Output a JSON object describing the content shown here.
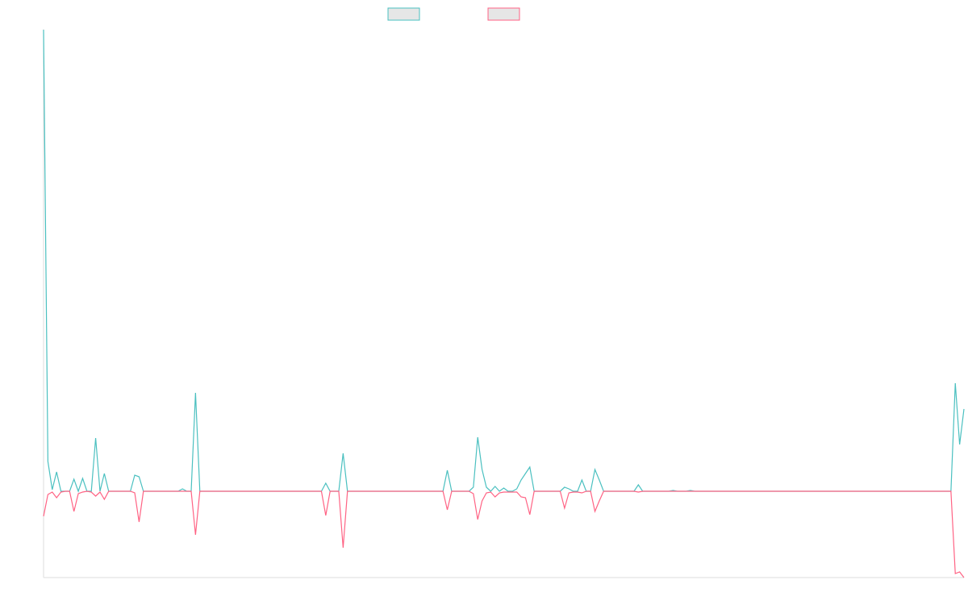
{
  "chart_data": {
    "type": "line",
    "categories": [
      null,
      null,
      null,
      null,
      null,
      null,
      null,
      null,
      null,
      null,
      null,
      null,
      null,
      null,
      null,
      null,
      null,
      null,
      null,
      null,
      null,
      null,
      null,
      null,
      null,
      null,
      null,
      null,
      null,
      null,
      null,
      null,
      null,
      null,
      null,
      null,
      null,
      null,
      null,
      null,
      null,
      null,
      null,
      null,
      null,
      null,
      null,
      null,
      null,
      null,
      null,
      null,
      null,
      null,
      null,
      null,
      null,
      null,
      null,
      null,
      null,
      null,
      null,
      null,
      null,
      null,
      null,
      null,
      null,
      null,
      null,
      null,
      null,
      null,
      null,
      null,
      null,
      null,
      null,
      null,
      null,
      null,
      null,
      null,
      null,
      null,
      null,
      null,
      null,
      null,
      null,
      null,
      null,
      null,
      null,
      null,
      null,
      null,
      null,
      null,
      null,
      null,
      null,
      null,
      null,
      null,
      null,
      null,
      null,
      null,
      null,
      null,
      null,
      null,
      null,
      null,
      null,
      null,
      null,
      null,
      null,
      null,
      null,
      null,
      null,
      null,
      null,
      null,
      null,
      null,
      null,
      null,
      null,
      null,
      null,
      null,
      null,
      null,
      null,
      null,
      null,
      null,
      null,
      null,
      null,
      null,
      null,
      null,
      null,
      null,
      null,
      null,
      null,
      null,
      null,
      null,
      null,
      null,
      null,
      null,
      null,
      null,
      null,
      null,
      null,
      null,
      null,
      null,
      null,
      null,
      null,
      null,
      null,
      null,
      null,
      null,
      null,
      null,
      null,
      null,
      null,
      null,
      null,
      null,
      null,
      null,
      null,
      null,
      null,
      null,
      null,
      null,
      null,
      null,
      null,
      null,
      null,
      null,
      null,
      null,
      null,
      null,
      null,
      null,
      null,
      null,
      null,
      null,
      null,
      null,
      null,
      null,
      null
    ],
    "series": [
      {
        "color": "#4bc0c0",
        "values": [
          572,
          37,
          2,
          24,
          0,
          0,
          0,
          15,
          0,
          16,
          0,
          0,
          66,
          0,
          22,
          0,
          0,
          0,
          0,
          0,
          0,
          20,
          18,
          0,
          0,
          0,
          0,
          0,
          0,
          0,
          0,
          0,
          3,
          0,
          0,
          122,
          0,
          0,
          0,
          0,
          0,
          0,
          0,
          0,
          0,
          0,
          0,
          0,
          0,
          0,
          0,
          0,
          0,
          0,
          0,
          0,
          0,
          0,
          0,
          0,
          0,
          0,
          0,
          0,
          0,
          10,
          0,
          0,
          0,
          47,
          0,
          0,
          0,
          0,
          0,
          0,
          0,
          0,
          0,
          0,
          0,
          0,
          0,
          0,
          0,
          0,
          0,
          0,
          0,
          0,
          0,
          0,
          0,
          26,
          0,
          0,
          0,
          0,
          0,
          5,
          67,
          27,
          5,
          0,
          6,
          0,
          4,
          0,
          0,
          3,
          14,
          22,
          30,
          0,
          0,
          0,
          0,
          0,
          0,
          0,
          5,
          3,
          0,
          0,
          14,
          0,
          0,
          27,
          14,
          0,
          0,
          0,
          0,
          0,
          0,
          0,
          0,
          8,
          0,
          0,
          0,
          0,
          0,
          0,
          0,
          1,
          0,
          0,
          0,
          1,
          0,
          0,
          0,
          0,
          0,
          0,
          0,
          0,
          0,
          0,
          0,
          0,
          0,
          0,
          0,
          0,
          0,
          0,
          0,
          0,
          0,
          0,
          0,
          0,
          0,
          0,
          0,
          0,
          0,
          0,
          0,
          0,
          0,
          0,
          0,
          0,
          0,
          0,
          0,
          0,
          0,
          0,
          0,
          0,
          0,
          0,
          0,
          0,
          0,
          0,
          0,
          0,
          0,
          0,
          0,
          0,
          0,
          0,
          0,
          0,
          134,
          58,
          102
        ]
      },
      {
        "color": "#ff6384",
        "values": [
          -31,
          -4,
          -1,
          -8,
          -1,
          0,
          0,
          -25,
          -3,
          -1,
          0,
          -1,
          -6,
          -1,
          -10,
          0,
          0,
          0,
          0,
          0,
          0,
          -2,
          -38,
          0,
          0,
          0,
          0,
          0,
          0,
          0,
          0,
          0,
          0,
          0,
          0,
          -54,
          0,
          0,
          0,
          0,
          0,
          0,
          0,
          0,
          0,
          0,
          0,
          0,
          0,
          0,
          0,
          0,
          0,
          0,
          0,
          0,
          0,
          0,
          0,
          0,
          0,
          0,
          0,
          0,
          0,
          -30,
          0,
          0,
          0,
          -70,
          0,
          0,
          0,
          0,
          0,
          0,
          0,
          0,
          0,
          0,
          0,
          0,
          0,
          0,
          0,
          0,
          0,
          0,
          0,
          0,
          0,
          0,
          0,
          -23,
          0,
          0,
          0,
          0,
          0,
          -3,
          -35,
          -12,
          -2,
          -1,
          -7,
          -2,
          -1,
          -1,
          -1,
          -1,
          -7,
          -8,
          -29,
          0,
          0,
          0,
          0,
          0,
          0,
          0,
          -21,
          -2,
          -1,
          -1,
          -2,
          0,
          0,
          -25,
          -12,
          0,
          0,
          0,
          0,
          0,
          0,
          0,
          0,
          -1,
          0,
          0,
          0,
          0,
          0,
          0,
          0,
          0,
          0,
          0,
          0,
          0,
          0,
          0,
          0,
          0,
          0,
          0,
          0,
          0,
          0,
          0,
          0,
          0,
          0,
          0,
          0,
          0,
          0,
          0,
          0,
          0,
          0,
          0,
          0,
          0,
          0,
          0,
          0,
          0,
          0,
          0,
          0,
          0,
          0,
          0,
          0,
          0,
          0,
          0,
          0,
          0,
          0,
          0,
          0,
          0,
          0,
          0,
          0,
          0,
          0,
          0,
          0,
          0,
          0,
          0,
          0,
          0,
          0,
          0,
          0,
          0,
          -102,
          -100,
          -107
        ]
      }
    ],
    "ylim": [
      -107,
      573
    ]
  }
}
